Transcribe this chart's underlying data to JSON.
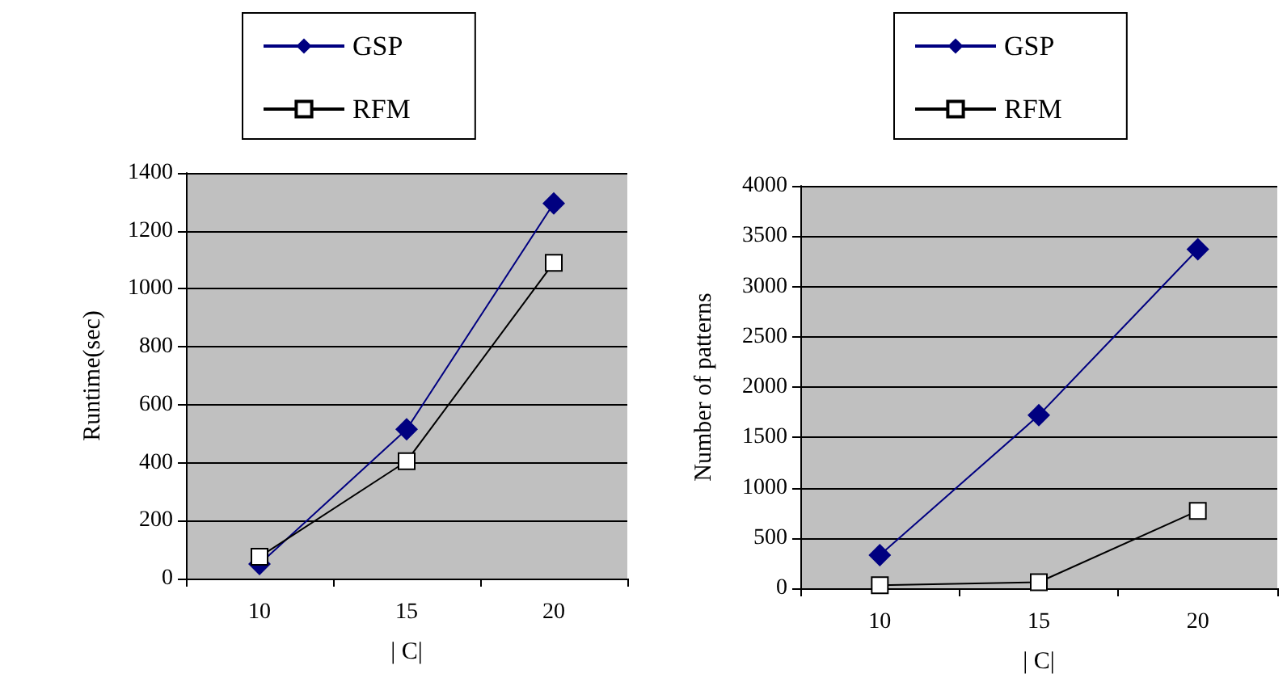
{
  "chart_data": [
    {
      "type": "line",
      "xlabel": "| C|",
      "ylabel": "Runtime(sec)",
      "categories": [
        "10",
        "15",
        "20"
      ],
      "series": [
        {
          "name": "GSP",
          "color": "#000080",
          "marker": "diamond",
          "values": [
            50,
            515,
            1295
          ]
        },
        {
          "name": "RFM",
          "color": "#000000",
          "marker": "square",
          "values": [
            75,
            405,
            1090
          ]
        }
      ],
      "ylim": [
        0,
        1400
      ],
      "yticks": [
        0,
        200,
        400,
        600,
        800,
        1000,
        1200,
        1400
      ],
      "grid": "y",
      "legend": "top"
    },
    {
      "type": "line",
      "xlabel": "| C|",
      "ylabel": "Number of patterns",
      "categories": [
        "10",
        "15",
        "20"
      ],
      "series": [
        {
          "name": "GSP",
          "color": "#000080",
          "marker": "diamond",
          "values": [
            330,
            1720,
            3370
          ]
        },
        {
          "name": "RFM",
          "color": "#000000",
          "marker": "square",
          "values": [
            30,
            60,
            770
          ]
        }
      ],
      "ylim": [
        0,
        4000
      ],
      "yticks": [
        0,
        500,
        1000,
        1500,
        2000,
        2500,
        3000,
        3500,
        4000
      ],
      "grid": "y",
      "legend": "top"
    }
  ]
}
